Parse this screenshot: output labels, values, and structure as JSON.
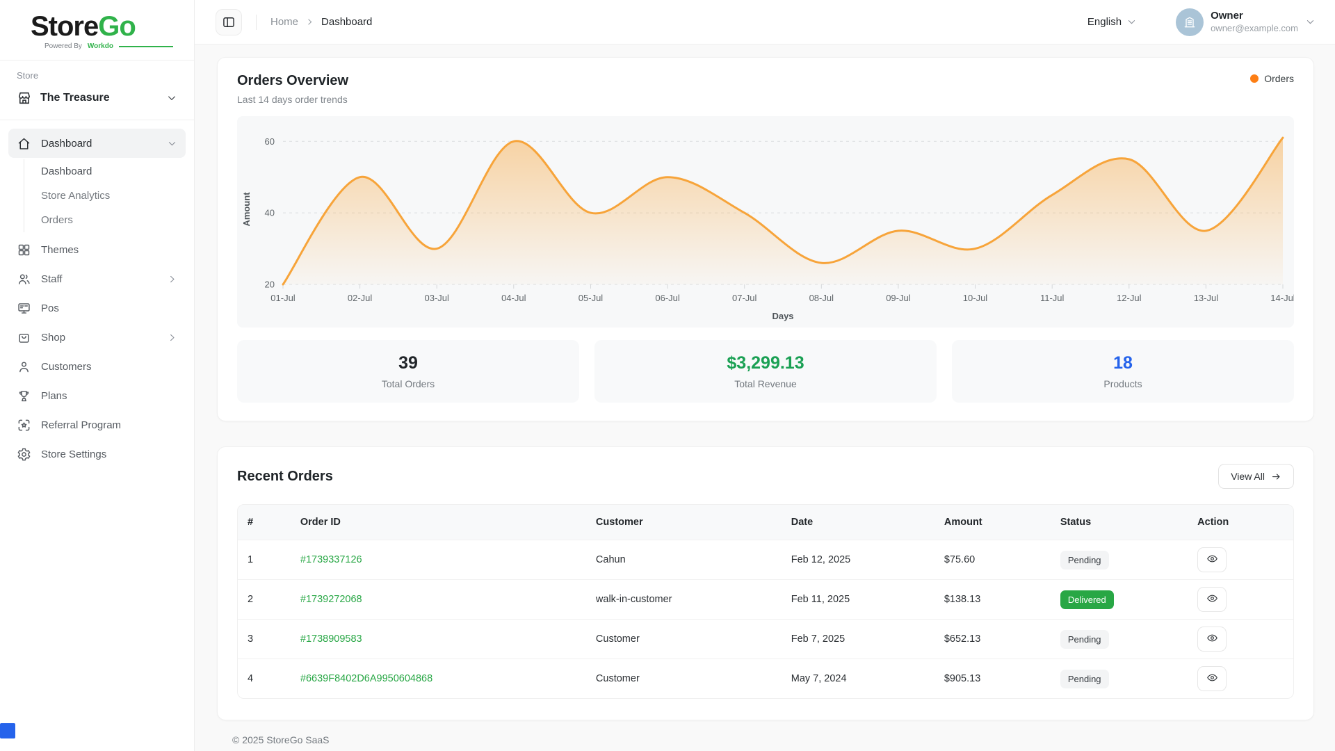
{
  "brand": {
    "name_primary": "Store",
    "name_secondary": "Go",
    "tagline_prefix": "Powered By",
    "tagline_brand": "Workdo"
  },
  "sidebar": {
    "section_label": "Store",
    "store_selector": {
      "label": "The Treasure"
    },
    "items": [
      {
        "label": "Dashboard",
        "icon": "home-icon",
        "chevron": "down",
        "active": true,
        "children": [
          {
            "label": "Dashboard",
            "active": true
          },
          {
            "label": "Store Analytics",
            "active": false
          },
          {
            "label": "Orders",
            "active": false
          }
        ]
      },
      {
        "label": "Themes",
        "icon": "grid-icon"
      },
      {
        "label": "Staff",
        "icon": "staff-icon",
        "chevron": "right"
      },
      {
        "label": "Pos",
        "icon": "pos-icon"
      },
      {
        "label": "Shop",
        "icon": "shop-icon",
        "chevron": "right"
      },
      {
        "label": "Customers",
        "icon": "customer-icon"
      },
      {
        "label": "Plans",
        "icon": "trophy-icon"
      },
      {
        "label": "Referral Program",
        "icon": "referral-icon"
      },
      {
        "label": "Store Settings",
        "icon": "gear-icon"
      }
    ]
  },
  "header": {
    "breadcrumb": [
      "Home",
      "Dashboard"
    ],
    "language": "English",
    "user": {
      "name": "Owner",
      "email": "owner@example.com"
    }
  },
  "overview": {
    "title": "Orders Overview",
    "subtitle": "Last 14 days order trends",
    "legend": "Orders",
    "stats": [
      {
        "value": "39",
        "label": "Total Orders",
        "color": "#212529"
      },
      {
        "value": "$3,299.13",
        "label": "Total Revenue",
        "color": "#1aa053"
      },
      {
        "value": "18",
        "label": "Products",
        "color": "#2563eb"
      }
    ]
  },
  "chart_data": {
    "type": "area",
    "title": "Orders Overview",
    "x": [
      "01-Jul",
      "02-Jul",
      "03-Jul",
      "04-Jul",
      "05-Jul",
      "06-Jul",
      "07-Jul",
      "08-Jul",
      "09-Jul",
      "10-Jul",
      "11-Jul",
      "12-Jul",
      "13-Jul",
      "14-Jul"
    ],
    "series": [
      {
        "name": "Orders",
        "values": [
          20,
          50,
          30,
          60,
          40,
          50,
          40,
          26,
          35,
          30,
          45,
          55,
          35,
          61
        ]
      }
    ],
    "xlabel": "Days",
    "ylabel": "Amount",
    "yticks": [
      20,
      40,
      60
    ],
    "ylim": [
      20,
      62
    ],
    "grid": "dashed-horizontal",
    "legend_position": "top-right",
    "line_color": "#f7a43a",
    "legend_dot_color": "#fd7e14",
    "fill_top": "rgba(247,164,58,0.45)",
    "fill_bottom": "rgba(247,164,58,0.03)"
  },
  "recent_orders": {
    "title": "Recent Orders",
    "view_all_label": "View All",
    "columns": [
      "#",
      "Order ID",
      "Customer",
      "Date",
      "Amount",
      "Status",
      "Action"
    ],
    "rows": [
      {
        "num": "1",
        "order_id": "#1739337126",
        "customer": "Cahun",
        "date": "Feb 12, 2025",
        "amount": "$75.60",
        "status": "Pending",
        "status_type": "pending"
      },
      {
        "num": "2",
        "order_id": "#1739272068",
        "customer": "walk-in-customer",
        "date": "Feb 11, 2025",
        "amount": "$138.13",
        "status": "Delivered",
        "status_type": "delivered"
      },
      {
        "num": "3",
        "order_id": "#1738909583",
        "customer": "Customer",
        "date": "Feb 7, 2025",
        "amount": "$652.13",
        "status": "Pending",
        "status_type": "pending"
      },
      {
        "num": "4",
        "order_id": "#6639F8402D6A9950604868",
        "customer": "Customer",
        "date": "May 7, 2024",
        "amount": "$905.13",
        "status": "Pending",
        "status_type": "pending"
      }
    ]
  },
  "footer": {
    "copyright": "© 2025 StoreGo SaaS"
  }
}
